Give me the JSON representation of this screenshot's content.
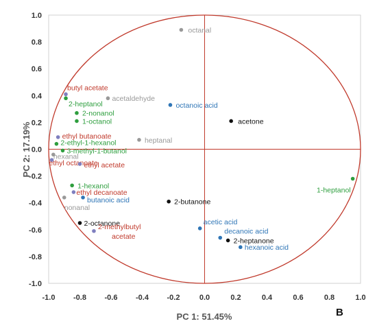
{
  "chart_data": {
    "type": "scatter",
    "xlabel": "PC 1: 51.45%",
    "ylabel": "PC 2: 17.19%",
    "panel_label": "B",
    "xlim": [
      -1.0,
      1.0
    ],
    "ylim": [
      -1.0,
      1.0
    ],
    "x_ticks": [
      "-1.0",
      "-0.8",
      "-0.6",
      "-0.4",
      "-0.2",
      "0.0",
      "0.2",
      "0.4",
      "0.6",
      "0.8",
      "1.0"
    ],
    "y_ticks": [
      "1.0",
      "0.8",
      "0.6",
      "0.4",
      "0.2",
      "0.0",
      "-0.2",
      "-0.4",
      "-0.6",
      "-0.8",
      "-1.0"
    ],
    "grid": false,
    "correlation_circle_radius": 1.0,
    "reference_lines": {
      "x": 0,
      "y": 0
    },
    "colors": {
      "circle": "#c0392b",
      "acid": "#2e75b6",
      "alcohol": "#2e9e3e",
      "ester": "#c0392b",
      "ketone": "#111111",
      "aldehyde": "#999999",
      "ester_marker": "#7f7fbf"
    },
    "points": [
      {
        "label": "octanal",
        "x": -0.15,
        "y": 0.89,
        "group": "aldehyde"
      },
      {
        "label": "butyl acetate",
        "x": -0.89,
        "y": 0.41,
        "group": "ester"
      },
      {
        "label": "2-heptanol",
        "x": -0.89,
        "y": 0.38,
        "group": "alcohol"
      },
      {
        "label": "acetaldehyde",
        "x": -0.62,
        "y": 0.38,
        "group": "aldehyde"
      },
      {
        "label": "octanoic acid",
        "x": -0.22,
        "y": 0.33,
        "group": "acid"
      },
      {
        "label": "2-nonanol",
        "x": -0.82,
        "y": 0.27,
        "group": "alcohol"
      },
      {
        "label": "1-octanol",
        "x": -0.82,
        "y": 0.21,
        "group": "alcohol"
      },
      {
        "label": "acetone",
        "x": 0.17,
        "y": 0.21,
        "group": "ketone"
      },
      {
        "label": "ethyl butanoate",
        "x": -0.94,
        "y": 0.09,
        "group": "ester"
      },
      {
        "label": "heptanal",
        "x": -0.42,
        "y": 0.07,
        "group": "aldehyde"
      },
      {
        "label": "2-ethyl-1-hexanol",
        "x": -0.95,
        "y": 0.04,
        "group": "alcohol"
      },
      {
        "label": "3-methyl-1-butanol",
        "x": -0.91,
        "y": -0.01,
        "group": "alcohol"
      },
      {
        "label": "hexanal",
        "x": -0.97,
        "y": -0.04,
        "group": "aldehyde"
      },
      {
        "label": "ethyl octanoate",
        "x": -0.98,
        "y": -0.08,
        "group": "ester"
      },
      {
        "label": "ethyl acetate",
        "x": -0.8,
        "y": -0.11,
        "group": "ester"
      },
      {
        "label": "1-heptanol",
        "x": 0.95,
        "y": -0.22,
        "group": "alcohol"
      },
      {
        "label": "1-hexanol",
        "x": -0.85,
        "y": -0.27,
        "group": "alcohol"
      },
      {
        "label": "ethyl decanoate",
        "x": -0.84,
        "y": -0.32,
        "group": "ester"
      },
      {
        "label": "butanoic acid",
        "x": -0.78,
        "y": -0.36,
        "group": "acid"
      },
      {
        "label": "nonanal",
        "x": -0.9,
        "y": -0.36,
        "group": "aldehyde"
      },
      {
        "label": "2-butanone",
        "x": -0.23,
        "y": -0.39,
        "group": "ketone"
      },
      {
        "label": "2-octanone",
        "x": -0.8,
        "y": -0.55,
        "group": "ketone"
      },
      {
        "label": "2-methylbutyl acetate",
        "x": -0.71,
        "y": -0.61,
        "group": "ester"
      },
      {
        "label": "acetic acid",
        "x": -0.03,
        "y": -0.59,
        "group": "acid"
      },
      {
        "label": "decanoic acid",
        "x": 0.1,
        "y": -0.66,
        "group": "acid"
      },
      {
        "label": "2-heptanone",
        "x": 0.15,
        "y": -0.68,
        "group": "ketone"
      },
      {
        "label": "hexanoic acid",
        "x": 0.23,
        "y": -0.73,
        "group": "acid"
      }
    ]
  }
}
